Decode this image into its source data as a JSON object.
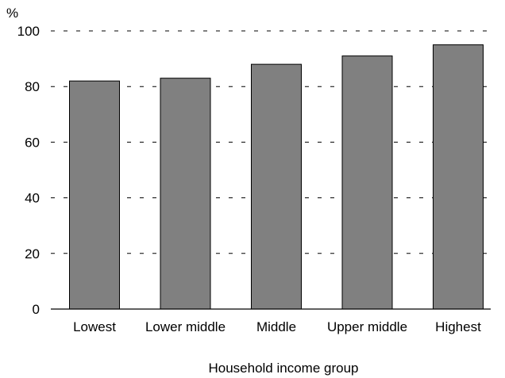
{
  "chart_data": {
    "type": "bar",
    "categories": [
      "Lowest",
      "Lower middle",
      "Middle",
      "Upper middle",
      "Highest"
    ],
    "values": [
      82,
      83,
      88,
      91,
      95
    ],
    "title": "",
    "xlabel": "Household income group",
    "ylabel": "%",
    "ylim": [
      0,
      100
    ],
    "yticks": [
      0,
      20,
      40,
      60,
      80,
      100
    ],
    "grid": true,
    "legend": "none",
    "bar_color": "#808080"
  }
}
